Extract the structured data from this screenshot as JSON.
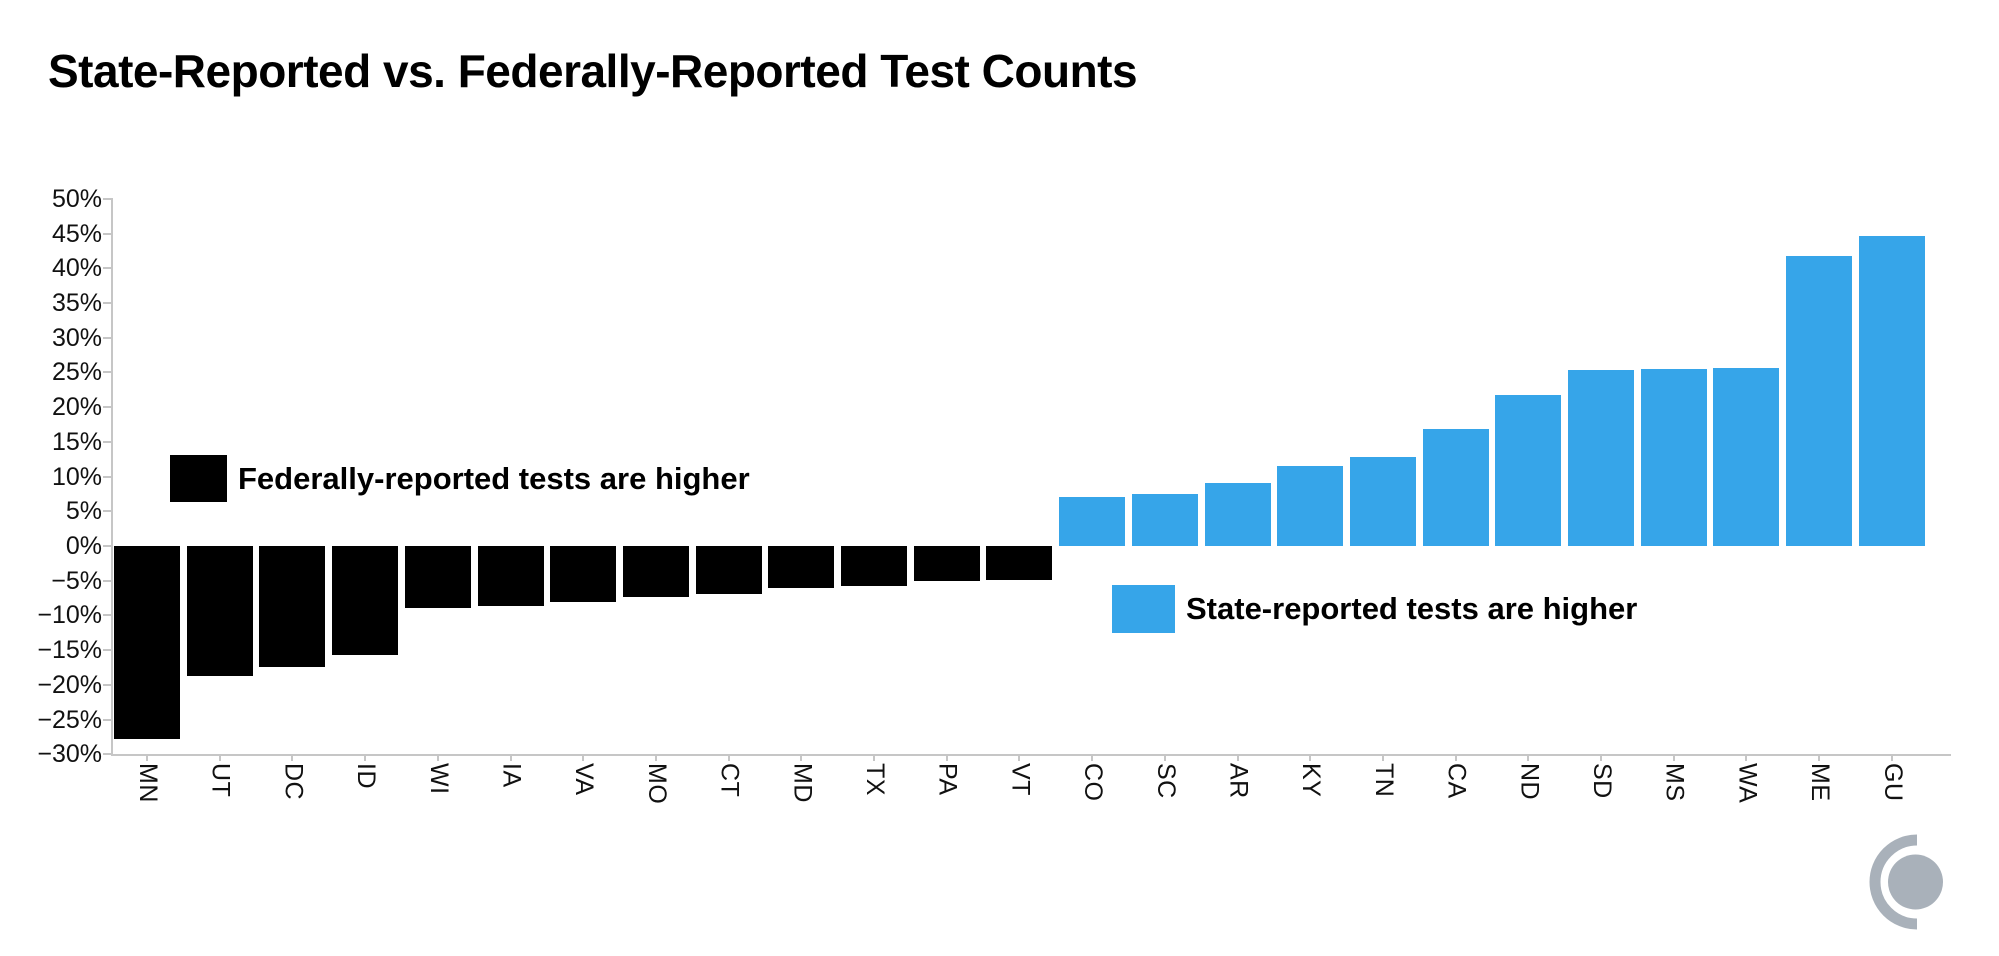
{
  "title": "State-Reported vs. Federally-Reported Test Counts",
  "chart_data": {
    "type": "bar",
    "title": "State-Reported vs. Federally-Reported Test Counts",
    "categories": [
      "MN",
      "UT",
      "DC",
      "ID",
      "WI",
      "IA",
      "VA",
      "MO",
      "CT",
      "MD",
      "TX",
      "PA",
      "VT",
      "CO",
      "SC",
      "AR",
      "KY",
      "TN",
      "CA",
      "ND",
      "SD",
      "MS",
      "WA",
      "ME",
      "GU"
    ],
    "values": [
      -27.8,
      -18.7,
      -17.4,
      -15.7,
      -9.0,
      -8.7,
      -8.0,
      -7.4,
      -6.9,
      -6.1,
      -5.8,
      -5.0,
      -4.9,
      7.0,
      7.5,
      9.1,
      11.5,
      12.8,
      16.8,
      21.7,
      25.3,
      25.5,
      25.6,
      41.8,
      44.6
    ],
    "unit": "%",
    "ylim": [
      -30,
      50
    ],
    "ytick_step": 5,
    "ytick_labels": [
      "50%",
      "45%",
      "40%",
      "35%",
      "30%",
      "25%",
      "20%",
      "15%",
      "10%",
      "5%",
      "0%",
      "−5%",
      "−10%",
      "−15%",
      "−20%",
      "−25%",
      "−30%"
    ],
    "ytick_values": [
      50,
      45,
      40,
      35,
      30,
      25,
      20,
      15,
      10,
      5,
      0,
      -5,
      -10,
      -15,
      -20,
      -25,
      -30
    ],
    "grid": false,
    "legend_position": "inside-plot",
    "legend": [
      {
        "label": "Federally-reported tests are higher",
        "color": "#000000",
        "applies_to": "negative-bars"
      },
      {
        "label": "State-reported tests are higher",
        "color": "#36A5E9",
        "applies_to": "positive-bars"
      }
    ]
  },
  "colors": {
    "negative_bar": "#000000",
    "positive_bar": "#36A5E9",
    "axis": "#c6c6c6",
    "text": "#111111",
    "background": "#ffffff",
    "logo_gray": "#A9B1BA"
  },
  "logo": {
    "name": "crescent-circle-logo"
  }
}
